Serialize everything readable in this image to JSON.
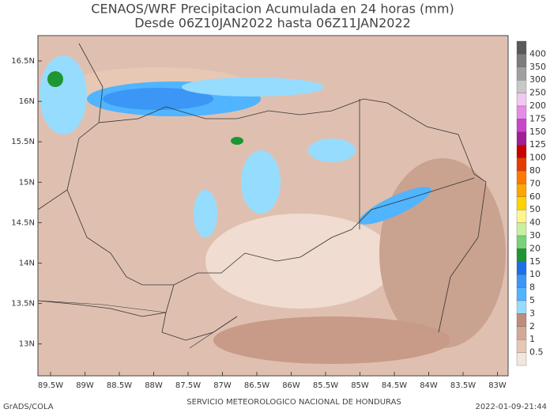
{
  "title": {
    "line1": "CENAOS/WRF Precipitacion Acumulada en 24 horas (mm)",
    "line2": "Desde 06Z10JAN2022 hasta 06Z11JAN2022"
  },
  "lat_labels": [
    "16.5N",
    "16N",
    "15.5N",
    "15N",
    "14.5N",
    "14N",
    "13.5N",
    "13N"
  ],
  "lon_labels": [
    "89.5W",
    "89W",
    "88.5W",
    "88W",
    "87.5W",
    "87W",
    "86.5W",
    "86W",
    "85.5W",
    "85W",
    "84.5W",
    "84W",
    "83.5W",
    "83W"
  ],
  "legend": {
    "labels": [
      "400",
      "350",
      "300",
      "250",
      "200",
      "175",
      "150",
      "125",
      "100",
      "80",
      "70",
      "60",
      "50",
      "40",
      "30",
      "20",
      "15",
      "10",
      "8",
      "5",
      "3",
      "2",
      "1",
      "0.5"
    ],
    "colors": [
      "#5a5a5a",
      "#7d7d7d",
      "#a0a0a0",
      "#c8c8c8",
      "#f0c8f0",
      "#e68ce6",
      "#c846c8",
      "#a01e96",
      "#c80000",
      "#e63c00",
      "#ff7800",
      "#ffa500",
      "#ffd200",
      "#fff58c",
      "#c8f0a0",
      "#78d278",
      "#1e9632",
      "#1e6ee6",
      "#3c96f5",
      "#50b4ff",
      "#96dcff",
      "#c08c7c",
      "#d2a896",
      "#e6c8b4",
      "#f5e6dc"
    ]
  },
  "footer": {
    "left": "GrADS/COLA",
    "center": "SERVICIO METEOROLOGICO NACIONAL DE HONDURAS",
    "right": "2022-01-09-21:44"
  }
}
